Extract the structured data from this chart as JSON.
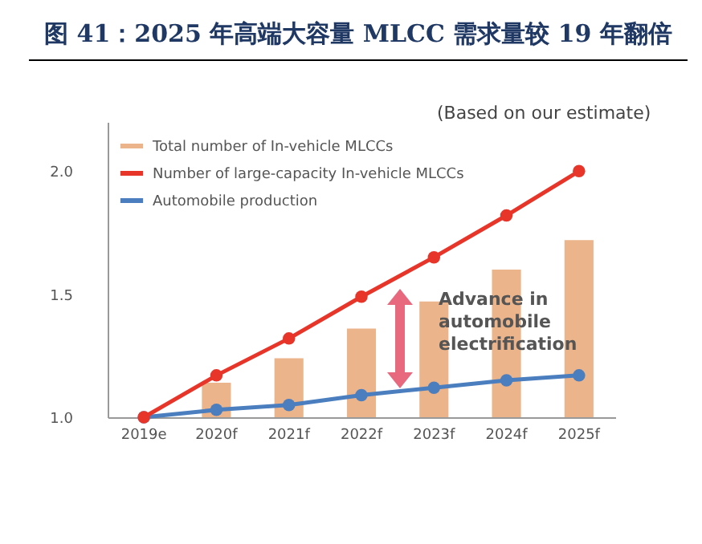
{
  "chart_data": {
    "type": "bar",
    "title": "图 41：2025 年高端大容量 MLCC 需求量较 19 年翻倍",
    "categories": [
      "2019e",
      "2020f",
      "2021f",
      "2022f",
      "2023f",
      "2024f",
      "2025f"
    ],
    "series": [
      {
        "name": "Total number of In-vehicle MLCCs",
        "color": "#ebb48a",
        "values": [
          1.0,
          1.14,
          1.24,
          1.36,
          1.47,
          1.6,
          1.72
        ]
      },
      {
        "name": "Number of large-capacity In-vehicle MLCCs",
        "type": "line",
        "color": "#e8352a",
        "marker": "circle",
        "values": [
          1.0,
          1.17,
          1.32,
          1.49,
          1.65,
          1.82,
          2.0
        ]
      },
      {
        "name": "Automobile production",
        "type": "line",
        "color": "#4a7ebf",
        "marker": "circle",
        "values": [
          1.0,
          1.03,
          1.05,
          1.09,
          1.12,
          1.15,
          1.17
        ]
      }
    ],
    "ylim": [
      1.0,
      2.2
    ],
    "yticks": [
      {
        "value": 1,
        "label": "1.0"
      },
      {
        "value": 1.5,
        "label": "1.5"
      },
      {
        "value": 2,
        "label": "2.0"
      }
    ],
    "legend": "top left",
    "grid": false,
    "annotations": [
      "(Based on our estimate)",
      "Advance in automobile electrification"
    ]
  }
}
